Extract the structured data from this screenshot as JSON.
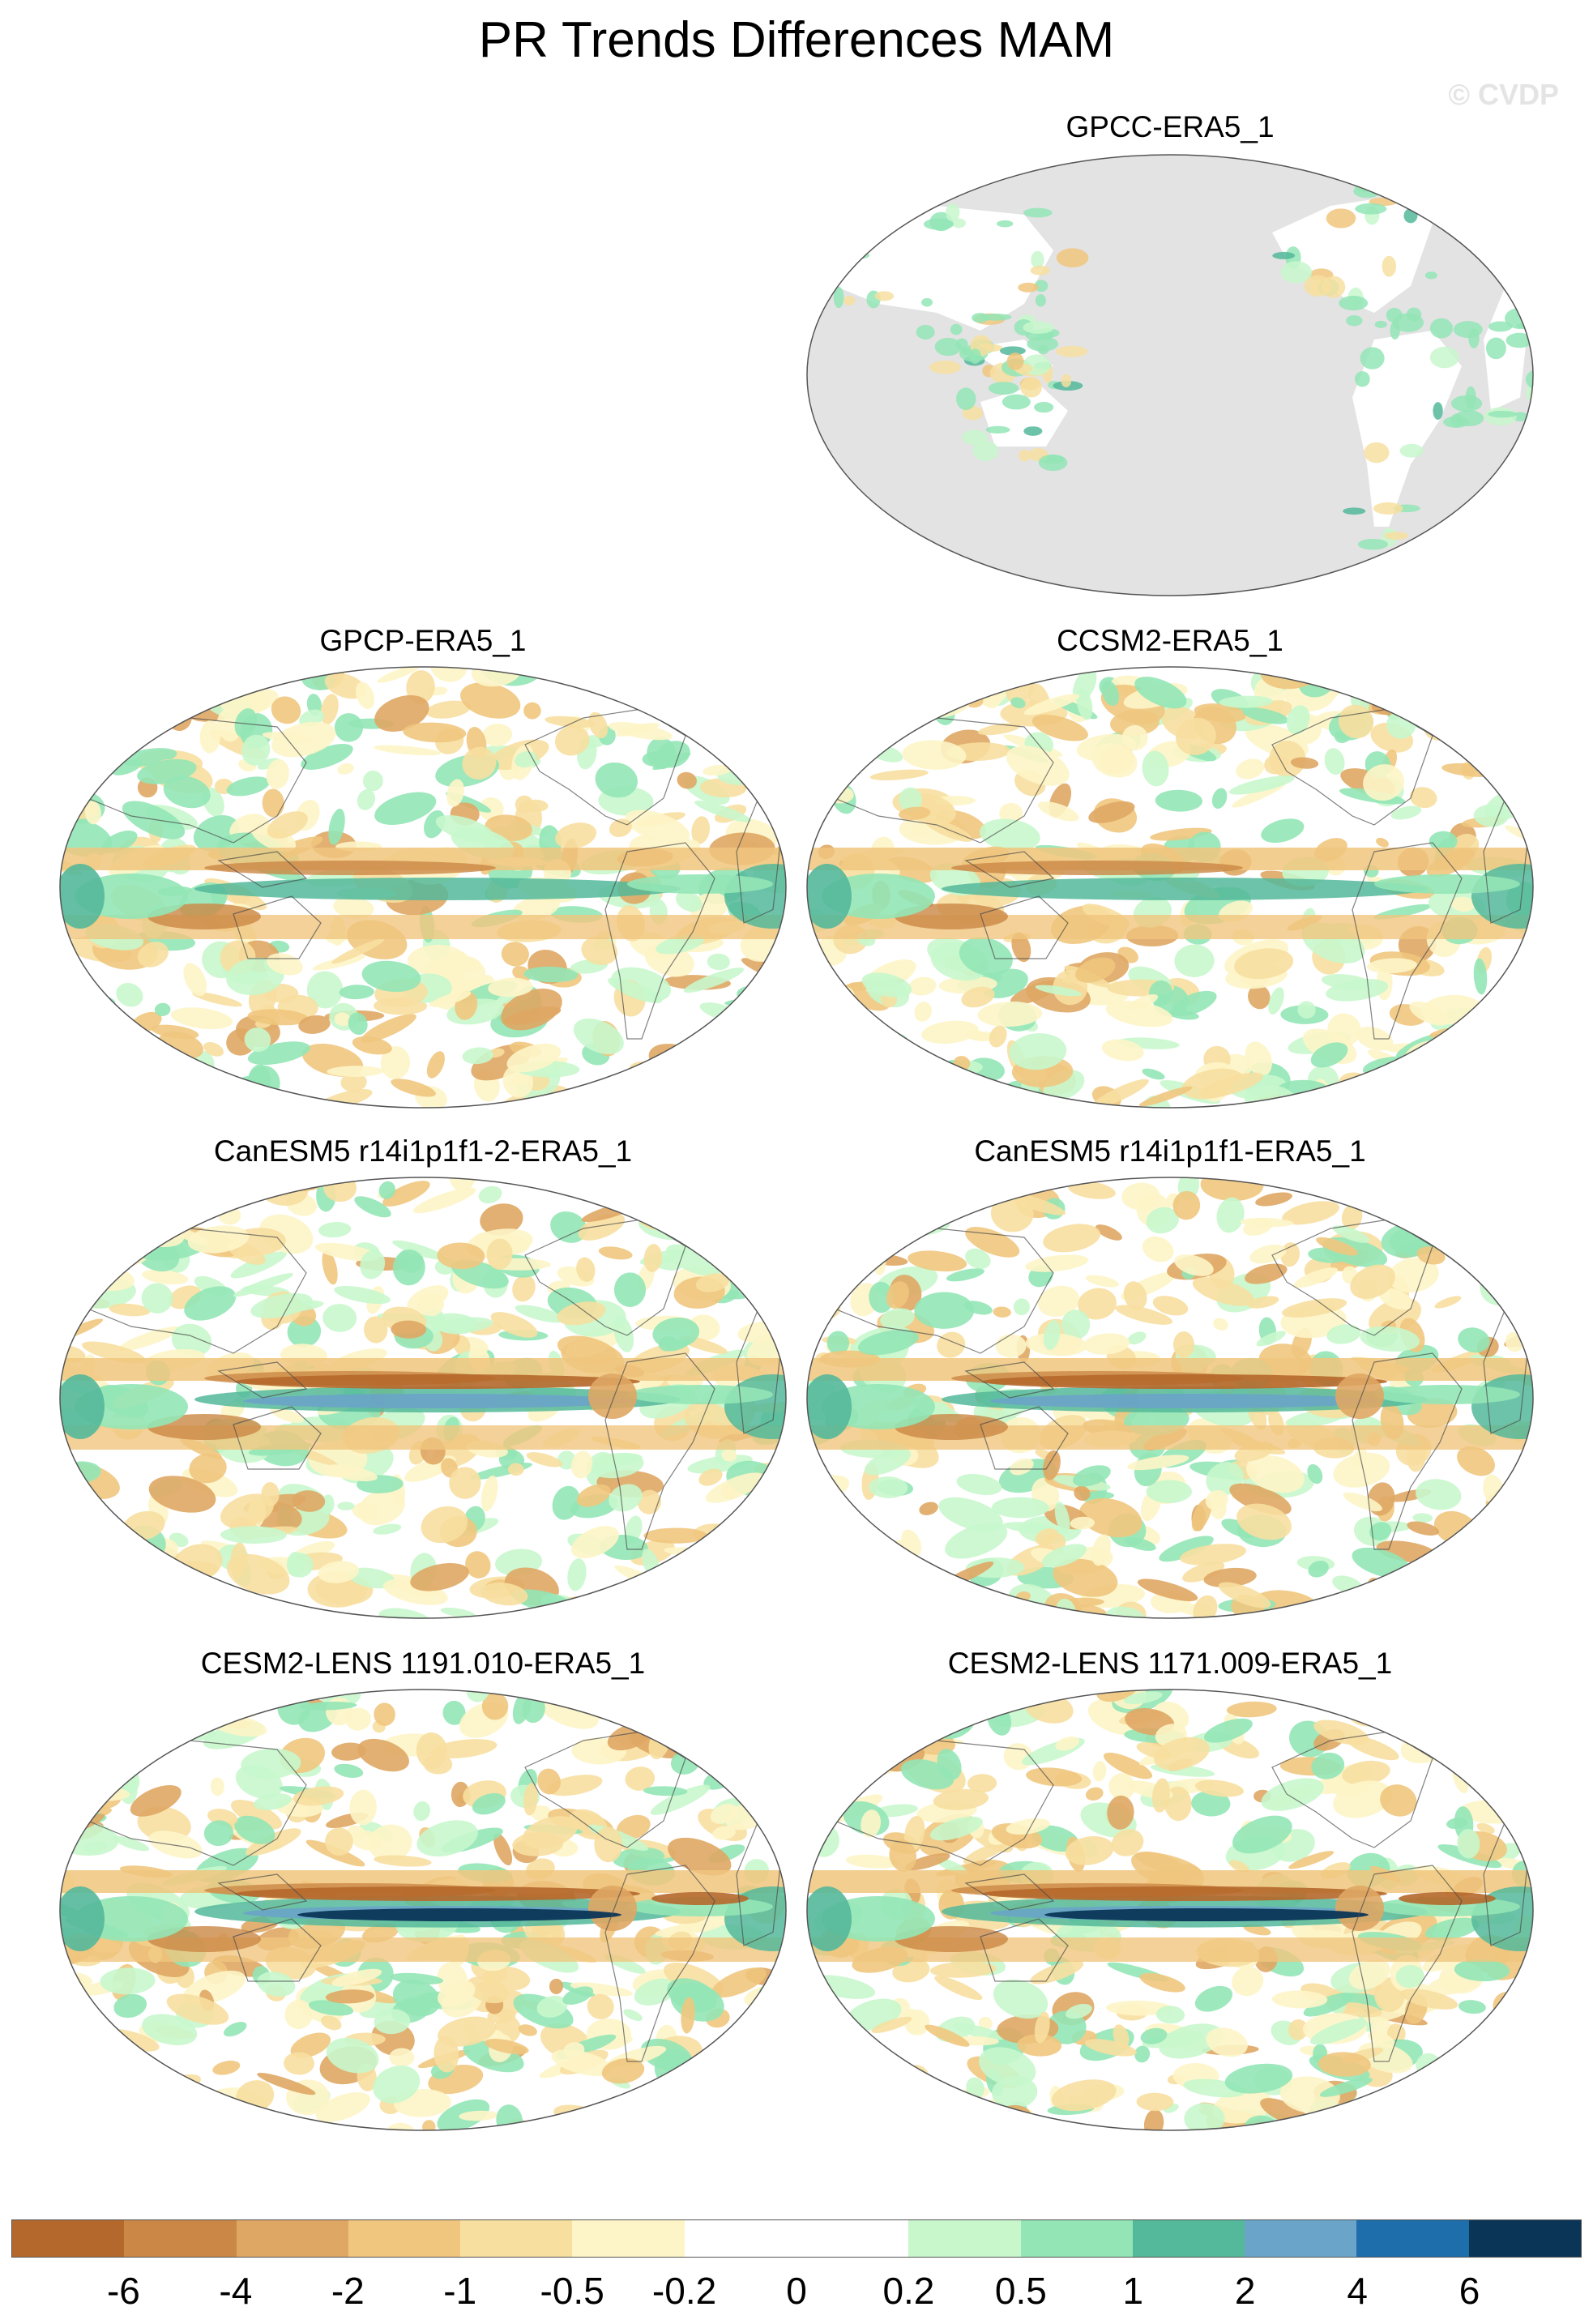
{
  "title": "PR Trends Differences MAM",
  "watermark": "© CVDP",
  "panels": [
    {
      "label": "GPCC-ERA5_1",
      "land_only": true
    },
    {
      "label": "GPCP-ERA5_1",
      "land_only": false
    },
    {
      "label": "CCSM2-ERA5_1",
      "land_only": false
    },
    {
      "label": "CanESM5 r14i1p1f1-2-ERA5_1",
      "land_only": false
    },
    {
      "label": "CanESM5 r14i1p1f1-ERA5_1",
      "land_only": false
    },
    {
      "label": "CESM2-LENS 1191.010-ERA5_1",
      "land_only": false
    },
    {
      "label": "CESM2-LENS 1171.009-ERA5_1",
      "land_only": false
    }
  ],
  "colorbar": {
    "colors": [
      "#b5682b",
      "#cb8745",
      "#dfa764",
      "#f0c67e",
      "#f7dfa0",
      "#fdf5c8",
      "#ffffff",
      "#ffffff",
      "#c8f7cc",
      "#93e5b6",
      "#54b89a",
      "#6aa4c8",
      "#1e6eab",
      "#0b3557"
    ],
    "ticks": [
      "-6",
      "-4",
      "-2",
      "-1",
      "-0.5",
      "-0.2",
      "0",
      "0.2",
      "0.5",
      "1",
      "2",
      "4",
      "6"
    ]
  },
  "colors": {
    "land_mask": "#e3e3e3",
    "coast": "#4a4a4a"
  }
}
